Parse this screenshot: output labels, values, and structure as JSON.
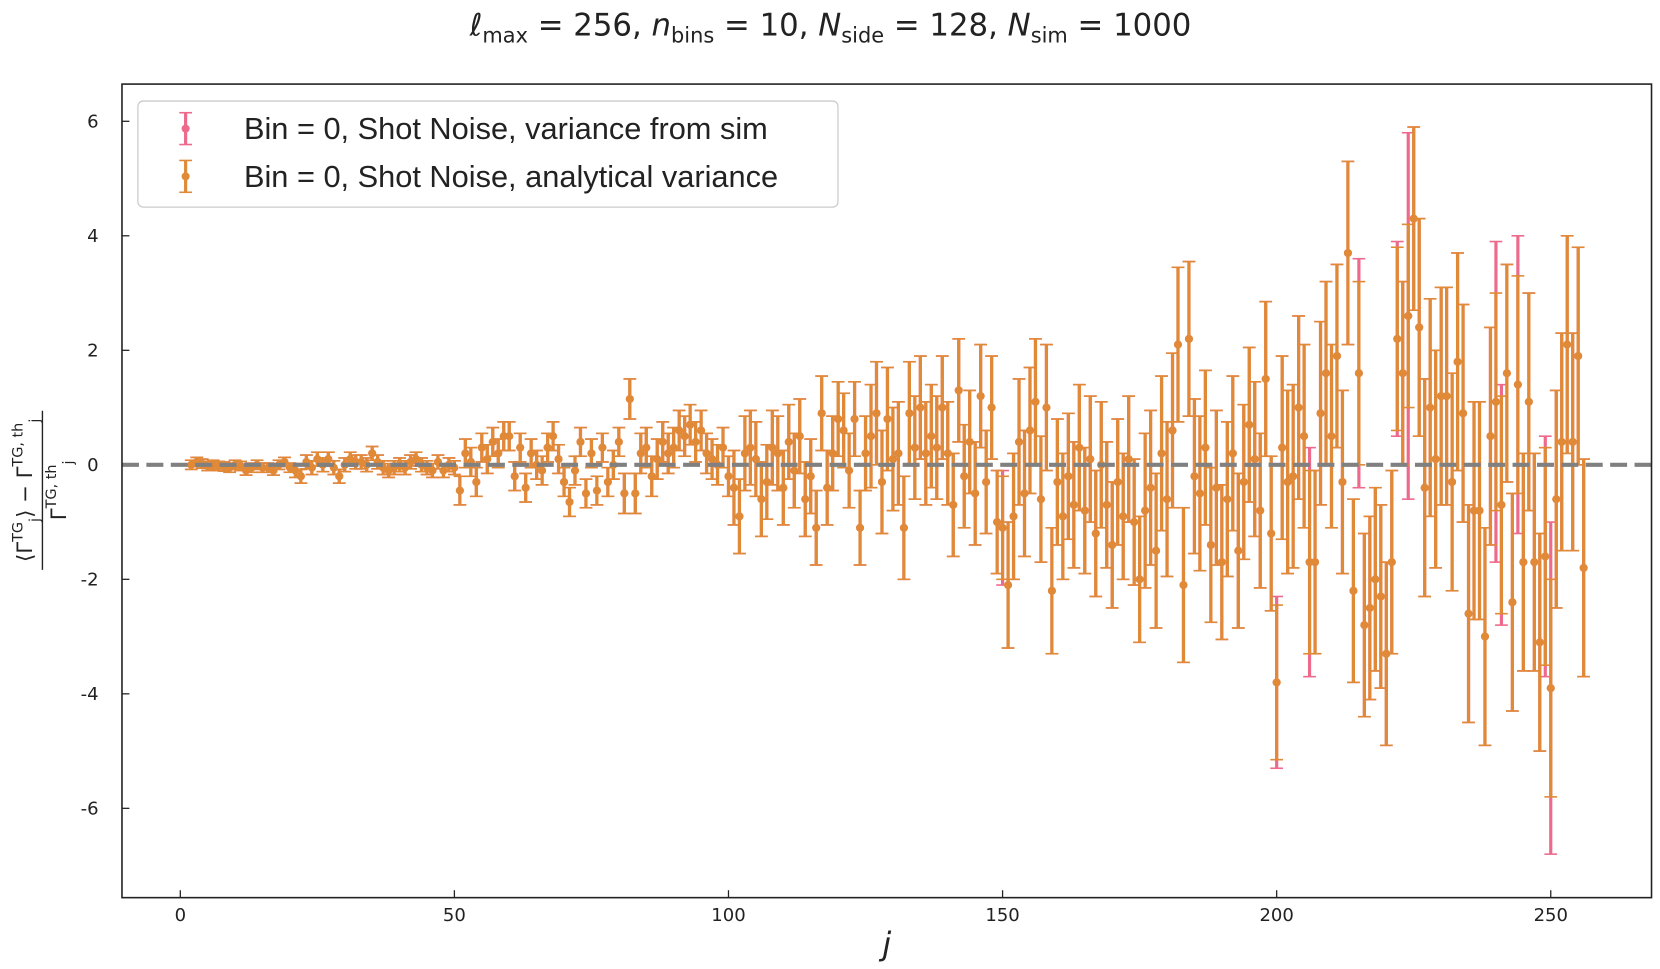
{
  "chart_data": {
    "type": "errorbar",
    "title": [
      {
        "text": "ℓ",
        "italic": true
      },
      {
        "text": "max",
        "sub": true
      },
      {
        "text": " = 256,  "
      },
      {
        "text": "n",
        "italic": true
      },
      {
        "text": "bins",
        "sub": true
      },
      {
        "text": " = 10,  "
      },
      {
        "text": "N",
        "italic": true
      },
      {
        "text": "side",
        "sub": true
      },
      {
        "text": " = 128, "
      },
      {
        "text": "N",
        "italic": true
      },
      {
        "text": "sim",
        "sub": true
      },
      {
        "text": " = 1000"
      }
    ],
    "xlabel": "j",
    "ylabel": {
      "numerator": [
        {
          "text": "⟨Γ"
        },
        {
          "text": "TG",
          "sup": true
        },
        {
          "text": "j",
          "sub": true
        },
        {
          "text": "⟩ − Γ"
        },
        {
          "text": "TG, th",
          "sup": true
        },
        {
          "text": "j",
          "sub": true
        }
      ],
      "denominator": [
        {
          "text": "Γ"
        },
        {
          "text": "TG, th",
          "sup": true
        },
        {
          "text": "j",
          "sub": true
        }
      ]
    },
    "xlim": [
      -10.64,
      268.38
    ],
    "ylim": [
      -7.56,
      6.65
    ],
    "xticks": [
      0,
      50,
      100,
      150,
      200,
      250
    ],
    "yticks": [
      -6,
      -4,
      -2,
      0,
      2,
      4,
      6
    ],
    "reference_line": 0,
    "legend": "upper left",
    "grid": false,
    "x": [
      2,
      3,
      4,
      5,
      6,
      7,
      8,
      9,
      10,
      11,
      12,
      13,
      14,
      15,
      16,
      17,
      18,
      19,
      20,
      21,
      22,
      23,
      24,
      25,
      26,
      27,
      28,
      29,
      30,
      31,
      32,
      33,
      34,
      35,
      36,
      37,
      38,
      39,
      40,
      41,
      42,
      43,
      44,
      45,
      46,
      47,
      48,
      49,
      50,
      51,
      52,
      53,
      54,
      55,
      56,
      57,
      58,
      59,
      60,
      61,
      62,
      63,
      64,
      65,
      66,
      67,
      68,
      69,
      70,
      71,
      72,
      73,
      74,
      75,
      76,
      77,
      78,
      79,
      80,
      81,
      82,
      83,
      84,
      85,
      86,
      87,
      88,
      89,
      90,
      91,
      92,
      93,
      94,
      95,
      96,
      97,
      98,
      99,
      100,
      101,
      102,
      103,
      104,
      105,
      106,
      107,
      108,
      109,
      110,
      111,
      112,
      113,
      114,
      115,
      116,
      117,
      118,
      119,
      120,
      121,
      122,
      123,
      124,
      125,
      126,
      127,
      128,
      129,
      130,
      131,
      132,
      133,
      134,
      135,
      136,
      137,
      138,
      139,
      140,
      141,
      142,
      143,
      144,
      145,
      146,
      147,
      148,
      149,
      150,
      151,
      152,
      153,
      154,
      155,
      156,
      157,
      158,
      159,
      160,
      161,
      162,
      163,
      164,
      165,
      166,
      167,
      168,
      169,
      170,
      171,
      172,
      173,
      174,
      175,
      176,
      177,
      178,
      179,
      180,
      181,
      182,
      183,
      184,
      185,
      186,
      187,
      188,
      189,
      190,
      191,
      192,
      193,
      194,
      195,
      196,
      197,
      198,
      199,
      200,
      201,
      202,
      203,
      204,
      205,
      206,
      207,
      208,
      209,
      210,
      211,
      212,
      213,
      214,
      215,
      216,
      217,
      218,
      219,
      220,
      221,
      222,
      223,
      224,
      225,
      226,
      227,
      228,
      229,
      230,
      231,
      232,
      233,
      234,
      235,
      236,
      237,
      238,
      239,
      240,
      241,
      242,
      243,
      244,
      245,
      246,
      247,
      248,
      249,
      250,
      251,
      252,
      253,
      254,
      255,
      256
    ],
    "values": [
      0,
      0.05,
      0.02,
      -0.02,
      0,
      -0.02,
      -0.03,
      -0.05,
      0,
      -0.02,
      -0.1,
      -0.05,
      0,
      -0.05,
      -0.05,
      -0.1,
      0,
      0.05,
      -0.05,
      -0.1,
      -0.2,
      0.05,
      -0.05,
      0.1,
      0,
      0.1,
      -0.05,
      -0.2,
      0,
      0.1,
      0.05,
      0.05,
      0,
      0.2,
      0.05,
      -0.05,
      -0.1,
      -0.05,
      0,
      -0.05,
      0.05,
      0.1,
      0,
      -0.05,
      -0.1,
      0.05,
      -0.1,
      0,
      -0.05,
      -0.45,
      0.2,
      0.05,
      -0.3,
      0.3,
      0.1,
      0.4,
      0.2,
      0.5,
      0.5,
      -0.2,
      0.3,
      -0.4,
      0.2,
      0,
      -0.1,
      0.3,
      0.5,
      0.1,
      -0.3,
      -0.65,
      -0.1,
      0.4,
      -0.5,
      0.2,
      -0.45,
      0.3,
      -0.3,
      0,
      0.4,
      -0.5,
      1.15,
      -0.5,
      0.2,
      0.3,
      -0.2,
      0.1,
      0.4,
      0.2,
      0.3,
      0.6,
      0.5,
      0.7,
      0.4,
      0.6,
      0.2,
      0.1,
      0,
      0.3,
      -0.2,
      -0.4,
      -0.9,
      0.2,
      0.3,
      0.1,
      -0.6,
      -0.3,
      0.3,
      0.2,
      -0.4,
      0.4,
      -0.1,
      0.5,
      -0.6,
      -0.2,
      -1.1,
      0.9,
      -0.4,
      0.2,
      0.8,
      0.6,
      -0.1,
      0.8,
      -1.1,
      0.2,
      0.5,
      0.9,
      -0.3,
      0.8,
      0.1,
      0.2,
      -1.1,
      0.9,
      0.3,
      1.0,
      0.2,
      0.5,
      0.3,
      1.0,
      0.2,
      -0.7,
      1.3,
      -0.2,
      0.4,
      -0.5,
      1.2,
      -0.3,
      1.0,
      -1.0,
      -1.1,
      -2.1,
      -0.9,
      0.4,
      -0.5,
      0.6,
      1.1,
      -0.6,
      1.0,
      -2.2,
      -0.3,
      -0.9,
      -0.2,
      -0.7,
      0.3,
      -0.8,
      0.1,
      -1.2,
      0,
      -0.7,
      -1.4,
      -0.3,
      -0.9,
      0.1,
      -1.0,
      -2.0,
      -0.8,
      -0.4,
      -1.5,
      0.2,
      -0.6,
      0.6,
      2.1,
      -2.1,
      2.2,
      -0.2,
      -0.5,
      0.3,
      -1.4,
      -0.4,
      -1.7,
      -0.6,
      0.2,
      -1.5,
      -0.3,
      0.7,
      0.1,
      -0.8,
      1.5,
      -1.2,
      -3.8,
      0.3,
      -0.3,
      -0.2,
      1.0,
      0.5,
      -1.7,
      -1.7,
      0.9,
      1.6,
      0.5,
      1.9,
      -0.3,
      3.7,
      -2.2,
      1.6,
      -2.8,
      -2.5,
      -2.0,
      -2.3,
      -3.3,
      -1.7,
      2.2,
      1.6,
      2.6,
      4.3,
      2.4,
      -0.4,
      1.0,
      0.1,
      1.2,
      1.2,
      -0.3,
      1.8,
      0.9,
      -2.6,
      -0.8,
      -0.8,
      -3.0,
      0.5,
      1.1,
      -0.7,
      1.6,
      -2.4,
      1.4,
      -1.7,
      1.1,
      -1.7,
      -3.1,
      -1.6,
      -3.9,
      -0.6,
      0.4,
      2.1,
      0.4,
      1.9,
      -1.8
    ],
    "series": [
      {
        "name": "Bin = 0, Shot Noise, variance from sim",
        "color": "#ee6a8c",
        "errors": [
          0.08,
          0.08,
          0.08,
          0.08,
          0.08,
          0.08,
          0.08,
          0.08,
          0.08,
          0.08,
          0.08,
          0.08,
          0.08,
          0.08,
          0.08,
          0.08,
          0.08,
          0.08,
          0.08,
          0.12,
          0.12,
          0.12,
          0.12,
          0.12,
          0.12,
          0.12,
          0.12,
          0.12,
          0.12,
          0.12,
          0.12,
          0.12,
          0.12,
          0.12,
          0.12,
          0.12,
          0.12,
          0.12,
          0.12,
          0.12,
          0.12,
          0.12,
          0.12,
          0.12,
          0.12,
          0.12,
          0.12,
          0.12,
          0.12,
          0.25,
          0.25,
          0.25,
          0.25,
          0.25,
          0.25,
          0.25,
          0.25,
          0.25,
          0.25,
          0.25,
          0.25,
          0.25,
          0.25,
          0.25,
          0.25,
          0.25,
          0.25,
          0.25,
          0.25,
          0.25,
          0.25,
          0.25,
          0.25,
          0.25,
          0.25,
          0.25,
          0.25,
          0.25,
          0.25,
          0.35,
          0.35,
          0.35,
          0.35,
          0.35,
          0.35,
          0.35,
          0.35,
          0.35,
          0.35,
          0.35,
          0.35,
          0.35,
          0.35,
          0.35,
          0.35,
          0.35,
          0.35,
          0.35,
          0.35,
          0.65,
          0.65,
          0.65,
          0.65,
          0.65,
          0.65,
          0.65,
          0.65,
          0.65,
          0.65,
          0.65,
          0.65,
          0.65,
          0.65,
          0.65,
          0.65,
          0.65,
          0.65,
          0.65,
          0.65,
          0.65,
          0.65,
          0.65,
          0.65,
          0.65,
          0.9,
          0.9,
          0.9,
          0.9,
          0.9,
          0.9,
          0.9,
          0.9,
          0.9,
          0.9,
          0.9,
          0.9,
          0.9,
          0.9,
          0.9,
          0.9,
          0.9,
          0.9,
          0.9,
          0.9,
          0.9,
          0.9,
          0.9,
          0.9,
          1.0,
          1.1,
          1.1,
          1.1,
          1.1,
          1.1,
          1.1,
          1.1,
          1.1,
          1.1,
          1.1,
          1.1,
          1.1,
          1.1,
          1.1,
          1.1,
          1.1,
          1.1,
          1.1,
          1.1,
          1.1,
          1.1,
          1.1,
          1.1,
          1.1,
          1.1,
          1.35,
          1.35,
          1.35,
          1.35,
          1.35,
          1.35,
          1.35,
          1.35,
          1.35,
          1.35,
          1.35,
          1.35,
          1.35,
          1.35,
          1.35,
          1.35,
          1.35,
          1.35,
          1.35,
          1.35,
          1.35,
          1.35,
          1.35,
          1.35,
          1.5,
          1.6,
          1.6,
          1.6,
          1.6,
          1.6,
          2.0,
          1.6,
          1.6,
          1.6,
          1.6,
          1.6,
          1.6,
          1.6,
          1.6,
          2.0,
          1.6,
          1.6,
          1.6,
          1.6,
          1.6,
          1.6,
          1.7,
          1.6,
          3.2,
          1.6,
          1.9,
          1.9,
          1.9,
          1.9,
          1.9,
          1.9,
          1.9,
          1.9,
          1.9,
          1.9,
          1.9,
          1.9,
          1.9,
          1.9,
          2.8,
          2.1,
          1.9,
          1.9,
          2.6,
          1.9,
          1.9,
          1.9,
          1.9,
          2.1,
          2.9,
          1.9,
          1.9,
          1.9,
          1.9,
          1.9,
          1.9
        ]
      },
      {
        "name": "Bin = 0, Shot Noise, analytical variance",
        "color": "#e08a38",
        "errors": [
          0.08,
          0.08,
          0.08,
          0.08,
          0.08,
          0.08,
          0.08,
          0.08,
          0.08,
          0.08,
          0.08,
          0.08,
          0.08,
          0.08,
          0.08,
          0.08,
          0.08,
          0.08,
          0.08,
          0.12,
          0.12,
          0.12,
          0.12,
          0.12,
          0.12,
          0.12,
          0.12,
          0.12,
          0.12,
          0.12,
          0.12,
          0.12,
          0.12,
          0.12,
          0.12,
          0.12,
          0.12,
          0.12,
          0.12,
          0.12,
          0.12,
          0.12,
          0.12,
          0.12,
          0.12,
          0.12,
          0.12,
          0.12,
          0.12,
          0.25,
          0.25,
          0.25,
          0.25,
          0.25,
          0.25,
          0.25,
          0.25,
          0.25,
          0.25,
          0.25,
          0.25,
          0.25,
          0.25,
          0.25,
          0.25,
          0.25,
          0.25,
          0.25,
          0.25,
          0.25,
          0.25,
          0.25,
          0.25,
          0.25,
          0.25,
          0.25,
          0.25,
          0.25,
          0.25,
          0.35,
          0.35,
          0.35,
          0.35,
          0.35,
          0.35,
          0.35,
          0.35,
          0.35,
          0.35,
          0.35,
          0.35,
          0.35,
          0.35,
          0.35,
          0.35,
          0.35,
          0.35,
          0.35,
          0.35,
          0.65,
          0.65,
          0.65,
          0.65,
          0.65,
          0.65,
          0.65,
          0.65,
          0.65,
          0.65,
          0.65,
          0.65,
          0.65,
          0.65,
          0.65,
          0.65,
          0.65,
          0.65,
          0.65,
          0.65,
          0.65,
          0.65,
          0.65,
          0.65,
          0.65,
          0.9,
          0.9,
          0.9,
          0.9,
          0.9,
          0.9,
          0.9,
          0.9,
          0.9,
          0.9,
          0.9,
          0.9,
          0.9,
          0.9,
          0.9,
          0.9,
          0.9,
          0.9,
          0.9,
          0.9,
          0.9,
          0.9,
          0.9,
          0.9,
          0.9,
          1.1,
          1.1,
          1.1,
          1.1,
          1.1,
          1.1,
          1.1,
          1.1,
          1.1,
          1.1,
          1.1,
          1.1,
          1.1,
          1.1,
          1.1,
          1.1,
          1.1,
          1.1,
          1.1,
          1.1,
          1.1,
          1.1,
          1.1,
          1.1,
          1.1,
          1.35,
          1.35,
          1.35,
          1.35,
          1.35,
          1.35,
          1.35,
          1.35,
          1.35,
          1.35,
          1.35,
          1.35,
          1.35,
          1.35,
          1.35,
          1.35,
          1.35,
          1.35,
          1.35,
          1.35,
          1.35,
          1.35,
          1.35,
          1.35,
          1.35,
          1.6,
          1.6,
          1.6,
          1.6,
          1.6,
          1.6,
          1.6,
          1.6,
          1.6,
          1.6,
          1.6,
          1.6,
          1.6,
          1.6,
          1.6,
          1.6,
          1.6,
          1.6,
          1.6,
          1.6,
          1.6,
          1.6,
          1.6,
          1.6,
          1.6,
          1.9,
          1.9,
          1.9,
          1.9,
          1.9,
          1.9,
          1.9,
          1.9,
          1.9,
          1.9,
          1.9,
          1.9,
          1.9,
          1.9,
          1.9,
          1.9,
          1.9,
          1.9,
          1.9,
          1.9,
          1.9,
          1.9,
          1.9,
          1.9,
          1.9,
          1.9,
          1.9,
          1.9,
          1.9,
          1.9,
          1.9
        ]
      }
    ]
  }
}
